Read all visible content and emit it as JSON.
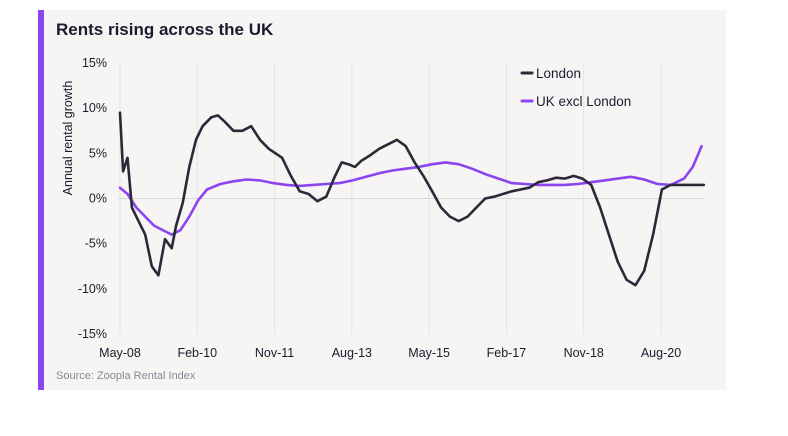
{
  "colors": {
    "london": "#2b2838",
    "uk_excl_london": "#8b45f0",
    "accent": "#8b45f0",
    "card_bg": "#f6f5f4"
  },
  "source": "Source: Zoopla Rental Index",
  "chart_data": {
    "type": "line",
    "title": "Rents rising across the UK",
    "xlabel": "",
    "ylabel": "Annual rental growth",
    "ylim": [
      -15,
      15
    ],
    "y_ticks": [
      "15%",
      "10%",
      "5%",
      "0%",
      "-5%",
      "-10%",
      "-15%"
    ],
    "y_tick_values": [
      15,
      10,
      5,
      0,
      -5,
      -10,
      -15
    ],
    "x_tick_labels": [
      "May-08",
      "Feb-10",
      "Nov-11",
      "Aug-13",
      "May-15",
      "Feb-17",
      "Nov-18",
      "Aug-20"
    ],
    "x_tick_values": [
      2008.33,
      2010.08,
      2011.83,
      2013.58,
      2015.33,
      2017.08,
      2018.83,
      2020.58
    ],
    "xlim": [
      2008.25,
      2021.75
    ],
    "grid": "horizontal zero line and vertical ticks",
    "legend_position": "top-right",
    "series": [
      {
        "name": "London",
        "x": [
          2008.33,
          2008.4,
          2008.5,
          2008.6,
          2008.75,
          2008.9,
          2009.05,
          2009.2,
          2009.35,
          2009.5,
          2009.6,
          2009.75,
          2009.9,
          2010.05,
          2010.2,
          2010.4,
          2010.55,
          2010.7,
          2010.9,
          2011.1,
          2011.3,
          2011.5,
          2011.7,
          2011.85,
          2012.0,
          2012.2,
          2012.4,
          2012.6,
          2012.8,
          2013.0,
          2013.2,
          2013.35,
          2013.5,
          2013.65,
          2013.8,
          2014.0,
          2014.2,
          2014.4,
          2014.6,
          2014.8,
          2015.0,
          2015.2,
          2015.4,
          2015.6,
          2015.8,
          2016.0,
          2016.2,
          2016.4,
          2016.6,
          2016.8,
          2017.0,
          2017.2,
          2017.4,
          2017.6,
          2017.8,
          2018.0,
          2018.2,
          2018.4,
          2018.6,
          2018.8,
          2019.0,
          2019.2,
          2019.4,
          2019.6,
          2019.8,
          2020.0,
          2020.2,
          2020.4,
          2020.6,
          2020.8,
          2021.0,
          2021.15,
          2021.3,
          2021.45,
          2021.55
        ],
        "values": [
          9.5,
          3.0,
          4.5,
          -1.0,
          -2.5,
          -4.0,
          -7.5,
          -8.5,
          -4.5,
          -5.5,
          -3.0,
          -0.5,
          3.5,
          6.5,
          8.0,
          9.0,
          9.2,
          8.5,
          7.5,
          7.5,
          8.0,
          6.5,
          5.5,
          5.0,
          4.5,
          2.5,
          0.8,
          0.5,
          -0.3,
          0.2,
          2.5,
          4.0,
          3.8,
          3.5,
          4.2,
          4.8,
          5.5,
          6.0,
          6.5,
          5.8,
          4.0,
          2.5,
          0.8,
          -1.0,
          -2.0,
          -2.5,
          -2.0,
          -1.0,
          0.0,
          0.2,
          0.5,
          0.8,
          1.0,
          1.2,
          1.8,
          2.0,
          2.3,
          2.2,
          2.5,
          2.2,
          1.5,
          -1.0,
          -4.0,
          -7.0,
          -9.0,
          -9.6,
          -8.0,
          -4.0,
          1.0,
          1.5,
          1.5,
          1.5,
          1.5,
          1.5,
          1.5
        ],
        "color": "#2b2838"
      },
      {
        "name": "UK excl London",
        "x": [
          2008.33,
          2008.5,
          2008.7,
          2008.9,
          2009.1,
          2009.3,
          2009.5,
          2009.7,
          2009.9,
          2010.1,
          2010.3,
          2010.6,
          2010.9,
          2011.2,
          2011.5,
          2011.8,
          2012.1,
          2012.4,
          2012.7,
          2013.0,
          2013.3,
          2013.6,
          2013.9,
          2014.2,
          2014.5,
          2014.8,
          2015.1,
          2015.4,
          2015.7,
          2016.0,
          2016.3,
          2016.6,
          2016.9,
          2017.2,
          2017.5,
          2017.8,
          2018.1,
          2018.4,
          2018.7,
          2019.0,
          2019.3,
          2019.6,
          2019.9,
          2020.2,
          2020.5,
          2020.8,
          2021.1,
          2021.3,
          2021.5
        ],
        "values": [
          1.2,
          0.5,
          -1.0,
          -2.0,
          -3.0,
          -3.5,
          -4.0,
          -3.5,
          -2.0,
          -0.2,
          1.0,
          1.6,
          1.9,
          2.1,
          2.0,
          1.7,
          1.5,
          1.4,
          1.5,
          1.6,
          1.7,
          2.0,
          2.4,
          2.8,
          3.1,
          3.3,
          3.5,
          3.8,
          4.0,
          3.8,
          3.3,
          2.7,
          2.2,
          1.7,
          1.6,
          1.5,
          1.5,
          1.5,
          1.6,
          1.8,
          2.0,
          2.2,
          2.4,
          2.1,
          1.6,
          1.5,
          2.2,
          3.5,
          5.8
        ],
        "color": "#8b45f0"
      }
    ]
  }
}
